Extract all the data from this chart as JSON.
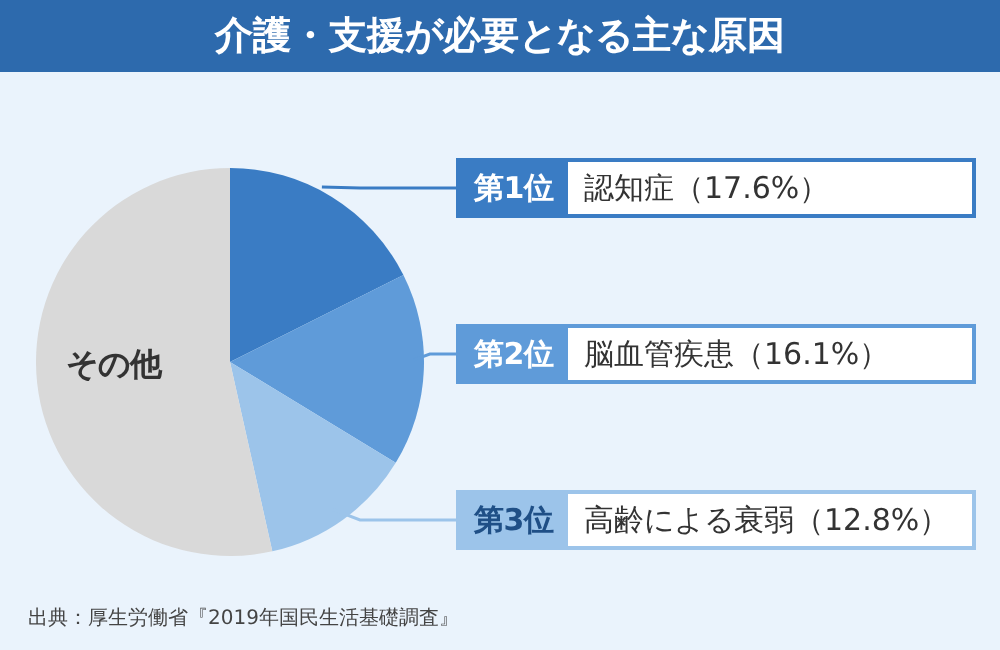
{
  "chart_data": {
    "type": "pie",
    "legend": "right",
    "title": "介護・支援が必要となる主な原因",
    "categories": [
      "認知症",
      "脳血管疾患",
      "高齢による衰弱",
      "その他"
    ],
    "values": [
      17.6,
      16.1,
      12.8,
      53.5
    ],
    "colors": [
      "#3a7cc4",
      "#5f9bd9",
      "#9cc4ea",
      "#d9d9d9"
    ],
    "value_labels": [
      "（17.6%）",
      "（16.1%）",
      "（12.8%）",
      null
    ],
    "annotations": [
      {
        "text": "第1位",
        "x": "認知症"
      },
      {
        "text": "第2位",
        "x": "脳血管疾患"
      },
      {
        "text": "第3位",
        "x": "高齢による衰弱"
      },
      "出典：厚生労働省『2019年国民生活基礎調査』"
    ]
  }
}
